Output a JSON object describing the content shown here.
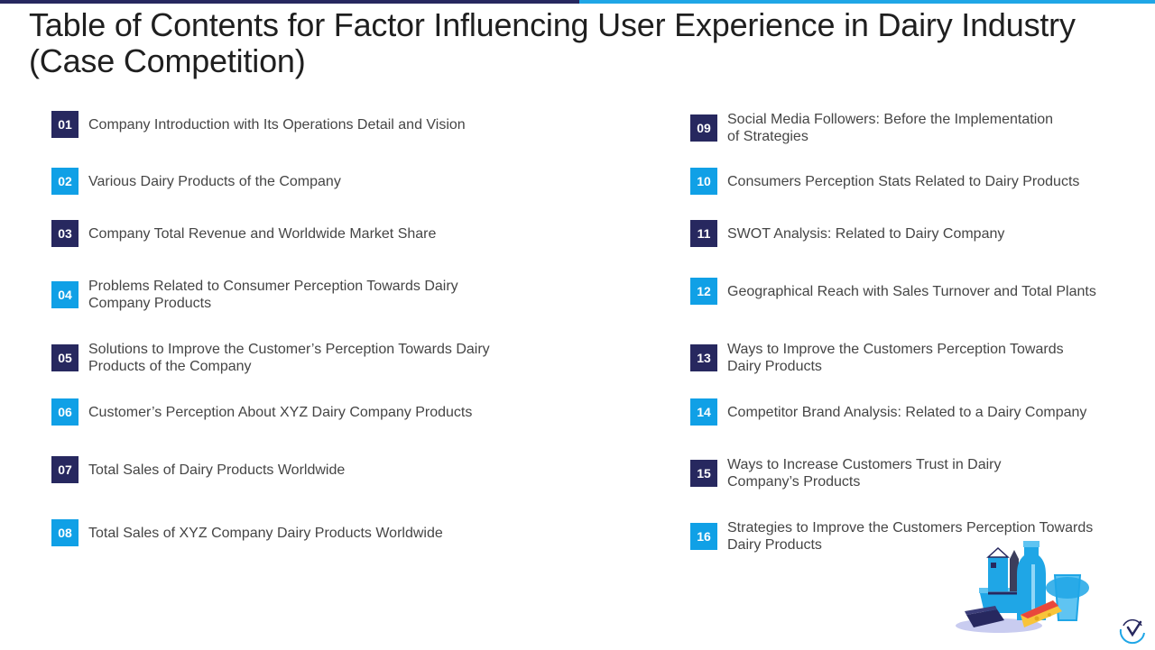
{
  "title": "Table of Contents for Factor Influencing User Experience in Dairy Industry (Case Competition)",
  "colors": {
    "dark": "#27285f",
    "light": "#10a0e6"
  },
  "illustration_icon": "dairy-products-illustration",
  "logo_icon": "brand-logo-icon",
  "left_items": [
    {
      "num": "01",
      "text": "Company Introduction with Its Operations Detail and Vision",
      "color": "dark"
    },
    {
      "num": "02",
      "text": "Various Dairy Products of the Company",
      "color": "light"
    },
    {
      "num": "03",
      "text": "Company Total Revenue and Worldwide Market Share",
      "color": "dark"
    },
    {
      "num": "04",
      "text": "Problems Related to Consumer Perception Towards Dairy Company Products",
      "color": "light"
    },
    {
      "num": "05",
      "text": "Solutions to Improve the Customer’s Perception Towards Dairy Products of the Company",
      "color": "dark"
    },
    {
      "num": "06",
      "text": "Customer’s Perception About XYZ Dairy Company Products",
      "color": "light"
    },
    {
      "num": "07",
      "text": "Total Sales of Dairy Products Worldwide",
      "color": "dark"
    },
    {
      "num": "08",
      "text": "Total Sales of XYZ Company Dairy Products Worldwide",
      "color": "light"
    }
  ],
  "right_items": [
    {
      "num": "09",
      "text": "Social Media Followers: Before the Implementation of Strategies",
      "color": "dark"
    },
    {
      "num": "10",
      "text": "Consumers Perception Stats Related to Dairy Products",
      "color": "light"
    },
    {
      "num": "11",
      "text": "SWOT Analysis: Related to Dairy Company",
      "color": "dark"
    },
    {
      "num": "12",
      "text": "Geographical Reach with Sales Turnover and Total Plants",
      "color": "light"
    },
    {
      "num": "13",
      "text": "Ways to Improve the Customers Perception Towards Dairy Products",
      "color": "dark"
    },
    {
      "num": "14",
      "text": "Competitor Brand Analysis: Related to a Dairy Company",
      "color": "light"
    },
    {
      "num": "15",
      "text": "Ways to Increase Customers Trust in Dairy Company’s Products",
      "color": "dark"
    },
    {
      "num": "16",
      "text": "Strategies to Improve the Customers Perception Towards Dairy Products",
      "color": "light"
    }
  ]
}
